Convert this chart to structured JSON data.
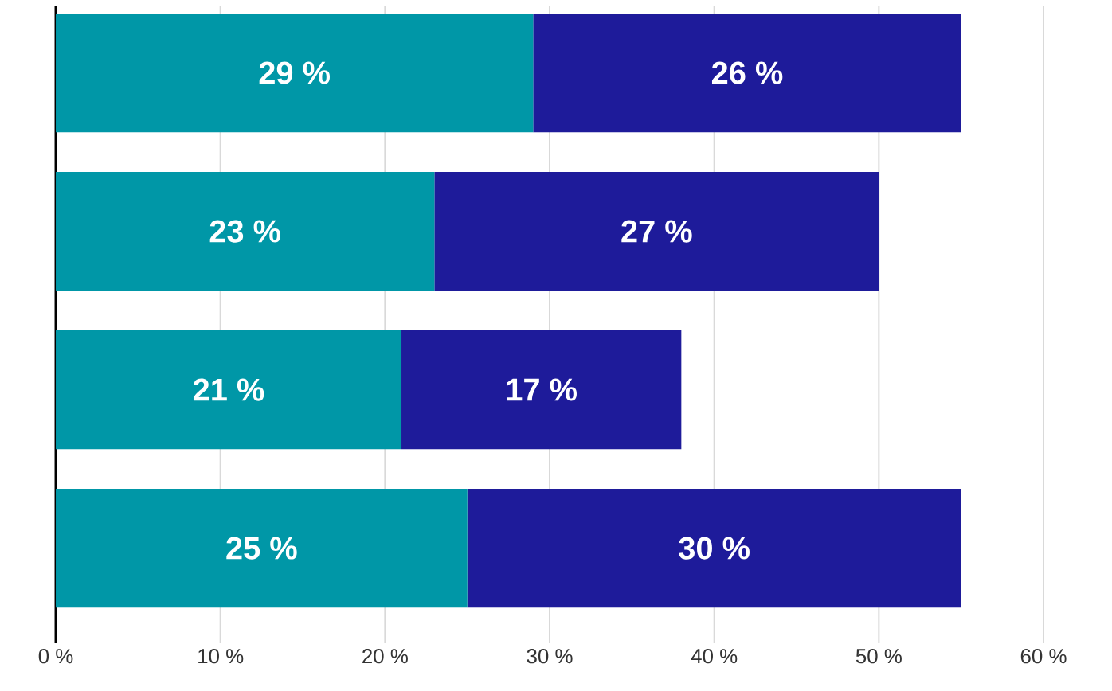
{
  "chart_data": {
    "type": "bar",
    "orientation": "horizontal",
    "stacked": true,
    "categories": [
      null,
      null,
      null,
      null
    ],
    "series": [
      {
        "color": "#0097a7",
        "values": [
          29,
          23,
          21,
          25
        ],
        "value_labels": [
          "29 %",
          "23 %",
          "21 %",
          "25 %"
        ]
      },
      {
        "color": "#1e1b9a",
        "values": [
          26,
          27,
          17,
          30
        ],
        "value_labels": [
          "26 %",
          "27 %",
          "17 %",
          "30 %"
        ]
      }
    ],
    "xlim": [
      0,
      60
    ],
    "xticks": [
      {
        "value": 0,
        "label": "0 %"
      },
      {
        "value": 10,
        "label": "10 %"
      },
      {
        "value": 20,
        "label": "20 %"
      },
      {
        "value": 30,
        "label": "30 %"
      },
      {
        "value": 40,
        "label": "40 %"
      },
      {
        "value": 50,
        "label": "50 %"
      },
      {
        "value": 60,
        "label": "60 %"
      }
    ],
    "grid": "x"
  }
}
